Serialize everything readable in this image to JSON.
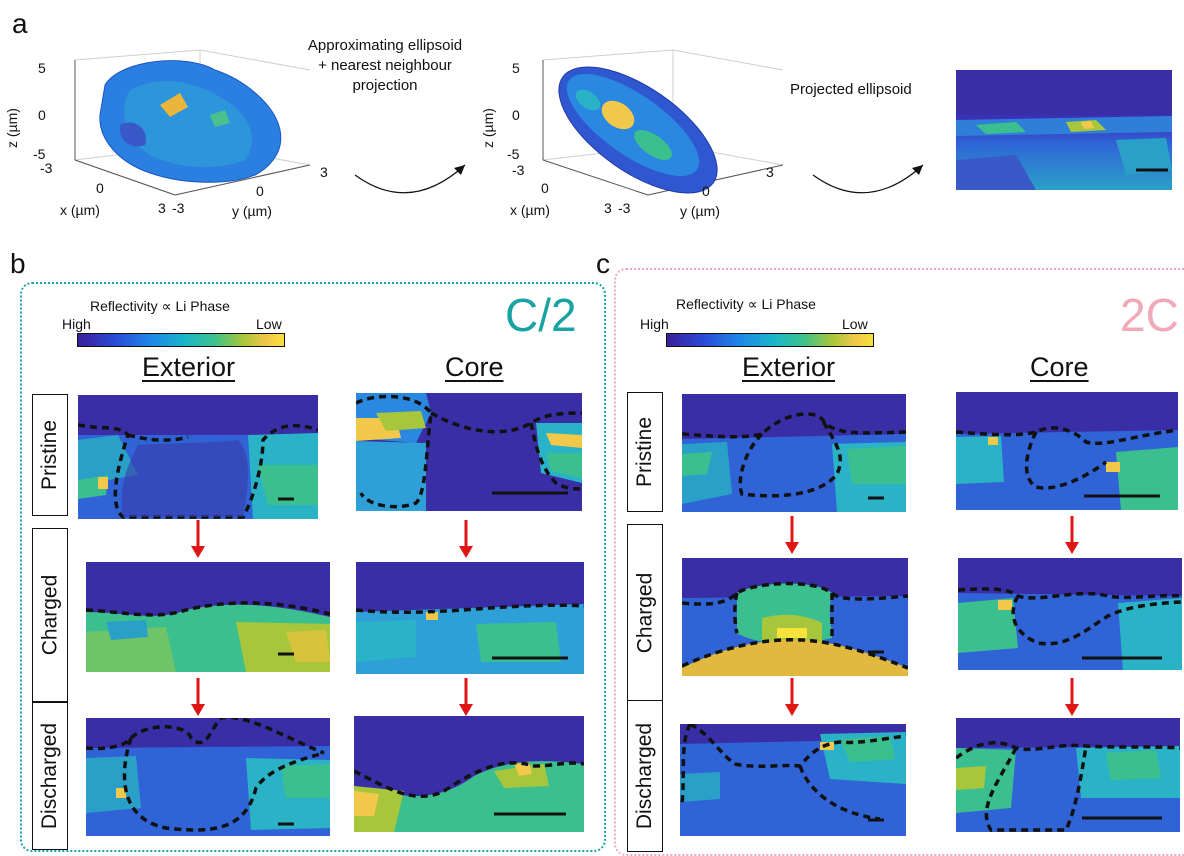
{
  "panel_labels": {
    "a": "a",
    "b": "b",
    "c": "c"
  },
  "panel_a": {
    "annotation_1": [
      "Approximating ellipsoid",
      "+ nearest neighbour",
      "projection"
    ],
    "annotation_2": "Projected ellipsoid",
    "plot1": {
      "z_label": "z (µm)",
      "x_label": "x (µm)",
      "y_label": "y (µm)",
      "z_ticks": [
        "5",
        "0",
        "-5"
      ],
      "x_ticks": [
        "-3",
        "0",
        "3"
      ],
      "y_ticks": [
        "-3",
        "0",
        "3"
      ]
    },
    "plot2": {
      "z_label": "z (µm)",
      "x_label": "x (µm)",
      "y_label": "y (µm)",
      "z_ticks": [
        "5",
        "0",
        "-5"
      ],
      "x_ticks": [
        "-3",
        "0",
        "3"
      ],
      "y_ticks": [
        "-3",
        "0",
        "3"
      ]
    }
  },
  "colorbar": {
    "title": "Reflectivity ∝ Li Phase",
    "high": "High",
    "low": "Low"
  },
  "panel_b": {
    "rate": "C/2",
    "col_exterior": "Exterior",
    "col_core": "Core",
    "rows": [
      "Pristine",
      "Charged",
      "Discharged"
    ]
  },
  "panel_c": {
    "rate": "2C",
    "col_exterior": "Exterior",
    "col_core": "Core",
    "rows": [
      "Pristine",
      "Charged",
      "Discharged"
    ]
  },
  "colors": {
    "teal": "#1aa3a3",
    "pink": "#f1a9b8",
    "arrow_red": "#e01515"
  }
}
